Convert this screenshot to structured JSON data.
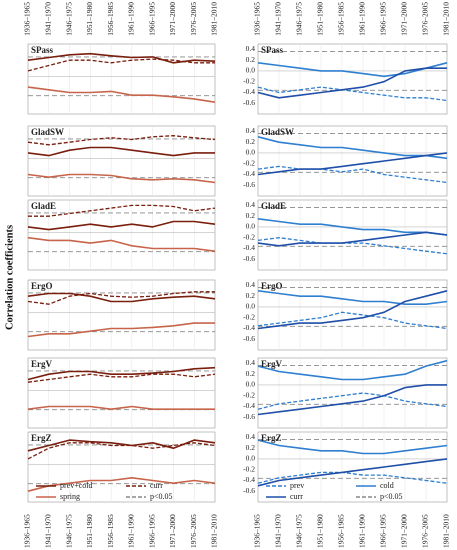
{
  "y_axis_title": "Correlation coefficients",
  "window_labels": [
    "1936–1965",
    "1941–1970",
    "1946–1975",
    "1951–1980",
    "1956–1985",
    "1961–1990",
    "1966–1995",
    "1971–2000",
    "1976–2005",
    "1981–2010"
  ],
  "colors": {
    "prev_cold": "#7a1e0e",
    "spring": "#c8644a",
    "blue": "#2f7fd0",
    "blue_dark": "#1f4fa8",
    "threshold": "#888888"
  },
  "chart_data": [
    {
      "panel": "left",
      "type": "line",
      "ylim": [
        -0.7,
        0.6
      ],
      "legend": [
        {
          "name": "prev+cold",
          "style": "solid",
          "color": "#7a1e0e"
        },
        {
          "name": "curr",
          "style": "dashed",
          "color": "#7a1e0e"
        },
        {
          "name": "spring",
          "style": "solid",
          "color": "#c8644a"
        },
        {
          "name": "p<0.05",
          "style": "dashed",
          "color": "#888888"
        }
      ],
      "legend_position": "bottom",
      "threshold": [
        0.36,
        -0.36
      ],
      "subplots": [
        {
          "name": "SPass",
          "series": [
            {
              "name": "prev+cold",
              "values": [
                0.3,
                0.35,
                0.4,
                0.42,
                0.38,
                0.35,
                0.36,
                0.25,
                0.3,
                0.28
              ]
            },
            {
              "name": "curr",
              "values": [
                0.1,
                0.2,
                0.3,
                0.3,
                0.25,
                0.3,
                0.32,
                0.3,
                0.25,
                0.25
              ]
            },
            {
              "name": "spring",
              "values": [
                -0.2,
                -0.25,
                -0.3,
                -0.3,
                -0.28,
                -0.35,
                -0.35,
                -0.38,
                -0.42,
                -0.48
              ]
            }
          ]
        },
        {
          "name": "GladSW",
          "series": [
            {
              "name": "prev+cold",
              "values": [
                0.1,
                0.05,
                0.15,
                0.2,
                0.2,
                0.15,
                0.1,
                0.05,
                0.1,
                0.1
              ]
            },
            {
              "name": "curr",
              "values": [
                0.3,
                0.25,
                0.3,
                0.35,
                0.38,
                0.35,
                0.4,
                0.42,
                0.38,
                0.35
              ]
            },
            {
              "name": "spring",
              "values": [
                -0.3,
                -0.35,
                -0.3,
                -0.3,
                -0.32,
                -0.38,
                -0.4,
                -0.38,
                -0.4,
                -0.45
              ]
            }
          ]
        },
        {
          "name": "GladE",
          "series": [
            {
              "name": "prev+cold",
              "values": [
                0.1,
                0.05,
                0.1,
                0.15,
                0.1,
                0.15,
                0.1,
                0.2,
                0.2,
                0.15
              ]
            },
            {
              "name": "curr",
              "values": [
                0.3,
                0.3,
                0.35,
                0.4,
                0.45,
                0.5,
                0.5,
                0.48,
                0.4,
                0.45
              ]
            },
            {
              "name": "spring",
              "values": [
                -0.1,
                -0.15,
                -0.15,
                -0.2,
                -0.15,
                -0.25,
                -0.3,
                -0.3,
                -0.3,
                -0.35
              ]
            }
          ]
        },
        {
          "name": "ErgO",
          "series": [
            {
              "name": "prev+cold",
              "values": [
                0.3,
                0.35,
                0.35,
                0.3,
                0.2,
                0.2,
                0.25,
                0.28,
                0.3,
                0.25
              ]
            },
            {
              "name": "curr",
              "values": [
                0.2,
                0.15,
                0.3,
                0.35,
                0.3,
                0.28,
                0.3,
                0.35,
                0.38,
                0.38
              ]
            },
            {
              "name": "spring",
              "values": [
                -0.45,
                -0.4,
                -0.4,
                -0.35,
                -0.3,
                -0.3,
                -0.28,
                -0.25,
                -0.2,
                -0.2
              ]
            }
          ]
        },
        {
          "name": "ErgV",
          "series": [
            {
              "name": "prev+cold",
              "values": [
                0.2,
                0.3,
                0.35,
                0.35,
                0.3,
                0.3,
                0.32,
                0.35,
                0.4,
                0.42
              ]
            },
            {
              "name": "curr",
              "values": [
                0.15,
                0.2,
                0.25,
                0.3,
                0.25,
                0.25,
                0.3,
                0.3,
                0.25,
                0.3
              ]
            },
            {
              "name": "spring",
              "values": [
                -0.35,
                -0.3,
                -0.3,
                -0.3,
                -0.35,
                -0.3,
                -0.35,
                -0.35,
                -0.35,
                -0.35
              ]
            }
          ]
        },
        {
          "name": "ErgZ",
          "series": [
            {
              "name": "prev+cold",
              "values": [
                0.25,
                0.35,
                0.45,
                0.42,
                0.4,
                0.35,
                0.4,
                0.3,
                0.45,
                0.4
              ]
            },
            {
              "name": "curr",
              "values": [
                0.1,
                0.3,
                0.4,
                0.4,
                0.35,
                0.35,
                0.3,
                0.35,
                0.4,
                0.35
              ]
            },
            {
              "name": "spring",
              "values": [
                -0.5,
                -0.4,
                -0.35,
                -0.3,
                -0.3,
                -0.25,
                -0.3,
                -0.35,
                -0.3,
                -0.35
              ]
            }
          ]
        }
      ]
    },
    {
      "panel": "right",
      "type": "line",
      "ylim": [
        -0.8,
        0.5
      ],
      "y_ticks": [
        0.4,
        0.2,
        0.0,
        -0.2,
        -0.4,
        -0.6
      ],
      "legend": [
        {
          "name": "prev",
          "style": "dashed",
          "color": "#2f7fd0"
        },
        {
          "name": "cold",
          "style": "solid",
          "color": "#2f7fd0"
        },
        {
          "name": "curr",
          "style": "solid",
          "color": "#1f4fa8"
        },
        {
          "name": "p<0.05",
          "style": "dashed",
          "color": "#888888"
        }
      ],
      "legend_position": "bottom",
      "threshold": [
        0.36,
        -0.36
      ],
      "subplots": [
        {
          "name": "SPass",
          "series": [
            {
              "name": "prev",
              "values": [
                -0.3,
                -0.4,
                -0.35,
                -0.3,
                -0.35,
                -0.4,
                -0.45,
                -0.5,
                -0.5,
                -0.55
              ]
            },
            {
              "name": "cold",
              "values": [
                0.15,
                0.1,
                0.05,
                0.0,
                0.0,
                -0.05,
                -0.1,
                -0.05,
                0.05,
                0.15
              ]
            },
            {
              "name": "curr",
              "values": [
                -0.4,
                -0.5,
                -0.45,
                -0.4,
                -0.35,
                -0.3,
                -0.2,
                0.0,
                0.05,
                0.05
              ]
            }
          ]
        },
        {
          "name": "GladSW",
          "series": [
            {
              "name": "prev",
              "values": [
                -0.3,
                -0.25,
                -0.3,
                -0.3,
                -0.35,
                -0.3,
                -0.4,
                -0.45,
                -0.5,
                -0.55
              ]
            },
            {
              "name": "cold",
              "values": [
                0.3,
                0.2,
                0.15,
                0.1,
                0.1,
                0.05,
                0.0,
                -0.05,
                -0.05,
                -0.1
              ]
            },
            {
              "name": "curr",
              "values": [
                -0.4,
                -0.35,
                -0.3,
                -0.3,
                -0.25,
                -0.2,
                -0.15,
                -0.1,
                -0.05,
                0.0
              ]
            }
          ]
        },
        {
          "name": "GladE",
          "series": [
            {
              "name": "prev",
              "values": [
                -0.25,
                -0.2,
                -0.25,
                -0.3,
                -0.3,
                -0.3,
                -0.35,
                -0.4,
                -0.45,
                -0.5
              ]
            },
            {
              "name": "cold",
              "values": [
                0.15,
                0.1,
                0.05,
                0.05,
                0.0,
                -0.05,
                -0.05,
                -0.1,
                -0.1,
                -0.15
              ]
            },
            {
              "name": "curr",
              "values": [
                -0.3,
                -0.35,
                -0.3,
                -0.3,
                -0.3,
                -0.25,
                -0.2,
                -0.15,
                -0.1,
                -0.15
              ]
            }
          ]
        },
        {
          "name": "ErgO",
          "series": [
            {
              "name": "prev",
              "values": [
                -0.35,
                -0.3,
                -0.25,
                -0.2,
                -0.1,
                -0.15,
                -0.2,
                -0.3,
                -0.35,
                -0.4
              ]
            },
            {
              "name": "cold",
              "values": [
                0.3,
                0.25,
                0.2,
                0.2,
                0.15,
                0.1,
                0.1,
                0.05,
                0.05,
                0.1
              ]
            },
            {
              "name": "curr",
              "values": [
                -0.4,
                -0.35,
                -0.3,
                -0.3,
                -0.25,
                -0.2,
                -0.1,
                0.1,
                0.2,
                0.3
              ]
            }
          ]
        },
        {
          "name": "ErgV",
          "series": [
            {
              "name": "prev",
              "values": [
                -0.45,
                -0.35,
                -0.3,
                -0.25,
                -0.2,
                -0.15,
                -0.2,
                -0.3,
                -0.35,
                -0.4
              ]
            },
            {
              "name": "cold",
              "values": [
                0.35,
                0.25,
                0.2,
                0.15,
                0.1,
                0.1,
                0.15,
                0.2,
                0.35,
                0.45
              ]
            },
            {
              "name": "curr",
              "values": [
                -0.55,
                -0.5,
                -0.45,
                -0.4,
                -0.35,
                -0.3,
                -0.2,
                -0.05,
                0.0,
                0.0
              ]
            }
          ]
        },
        {
          "name": "ErgZ",
          "series": [
            {
              "name": "prev",
              "values": [
                -0.45,
                -0.35,
                -0.3,
                -0.25,
                -0.25,
                -0.3,
                -0.3,
                -0.35,
                -0.4,
                -0.45
              ]
            },
            {
              "name": "cold",
              "values": [
                0.35,
                0.25,
                0.2,
                0.15,
                0.15,
                0.1,
                0.1,
                0.15,
                0.2,
                0.25
              ]
            },
            {
              "name": "curr",
              "values": [
                -0.5,
                -0.4,
                -0.35,
                -0.3,
                -0.25,
                -0.2,
                -0.15,
                -0.1,
                -0.05,
                0.0
              ]
            }
          ]
        }
      ]
    }
  ]
}
